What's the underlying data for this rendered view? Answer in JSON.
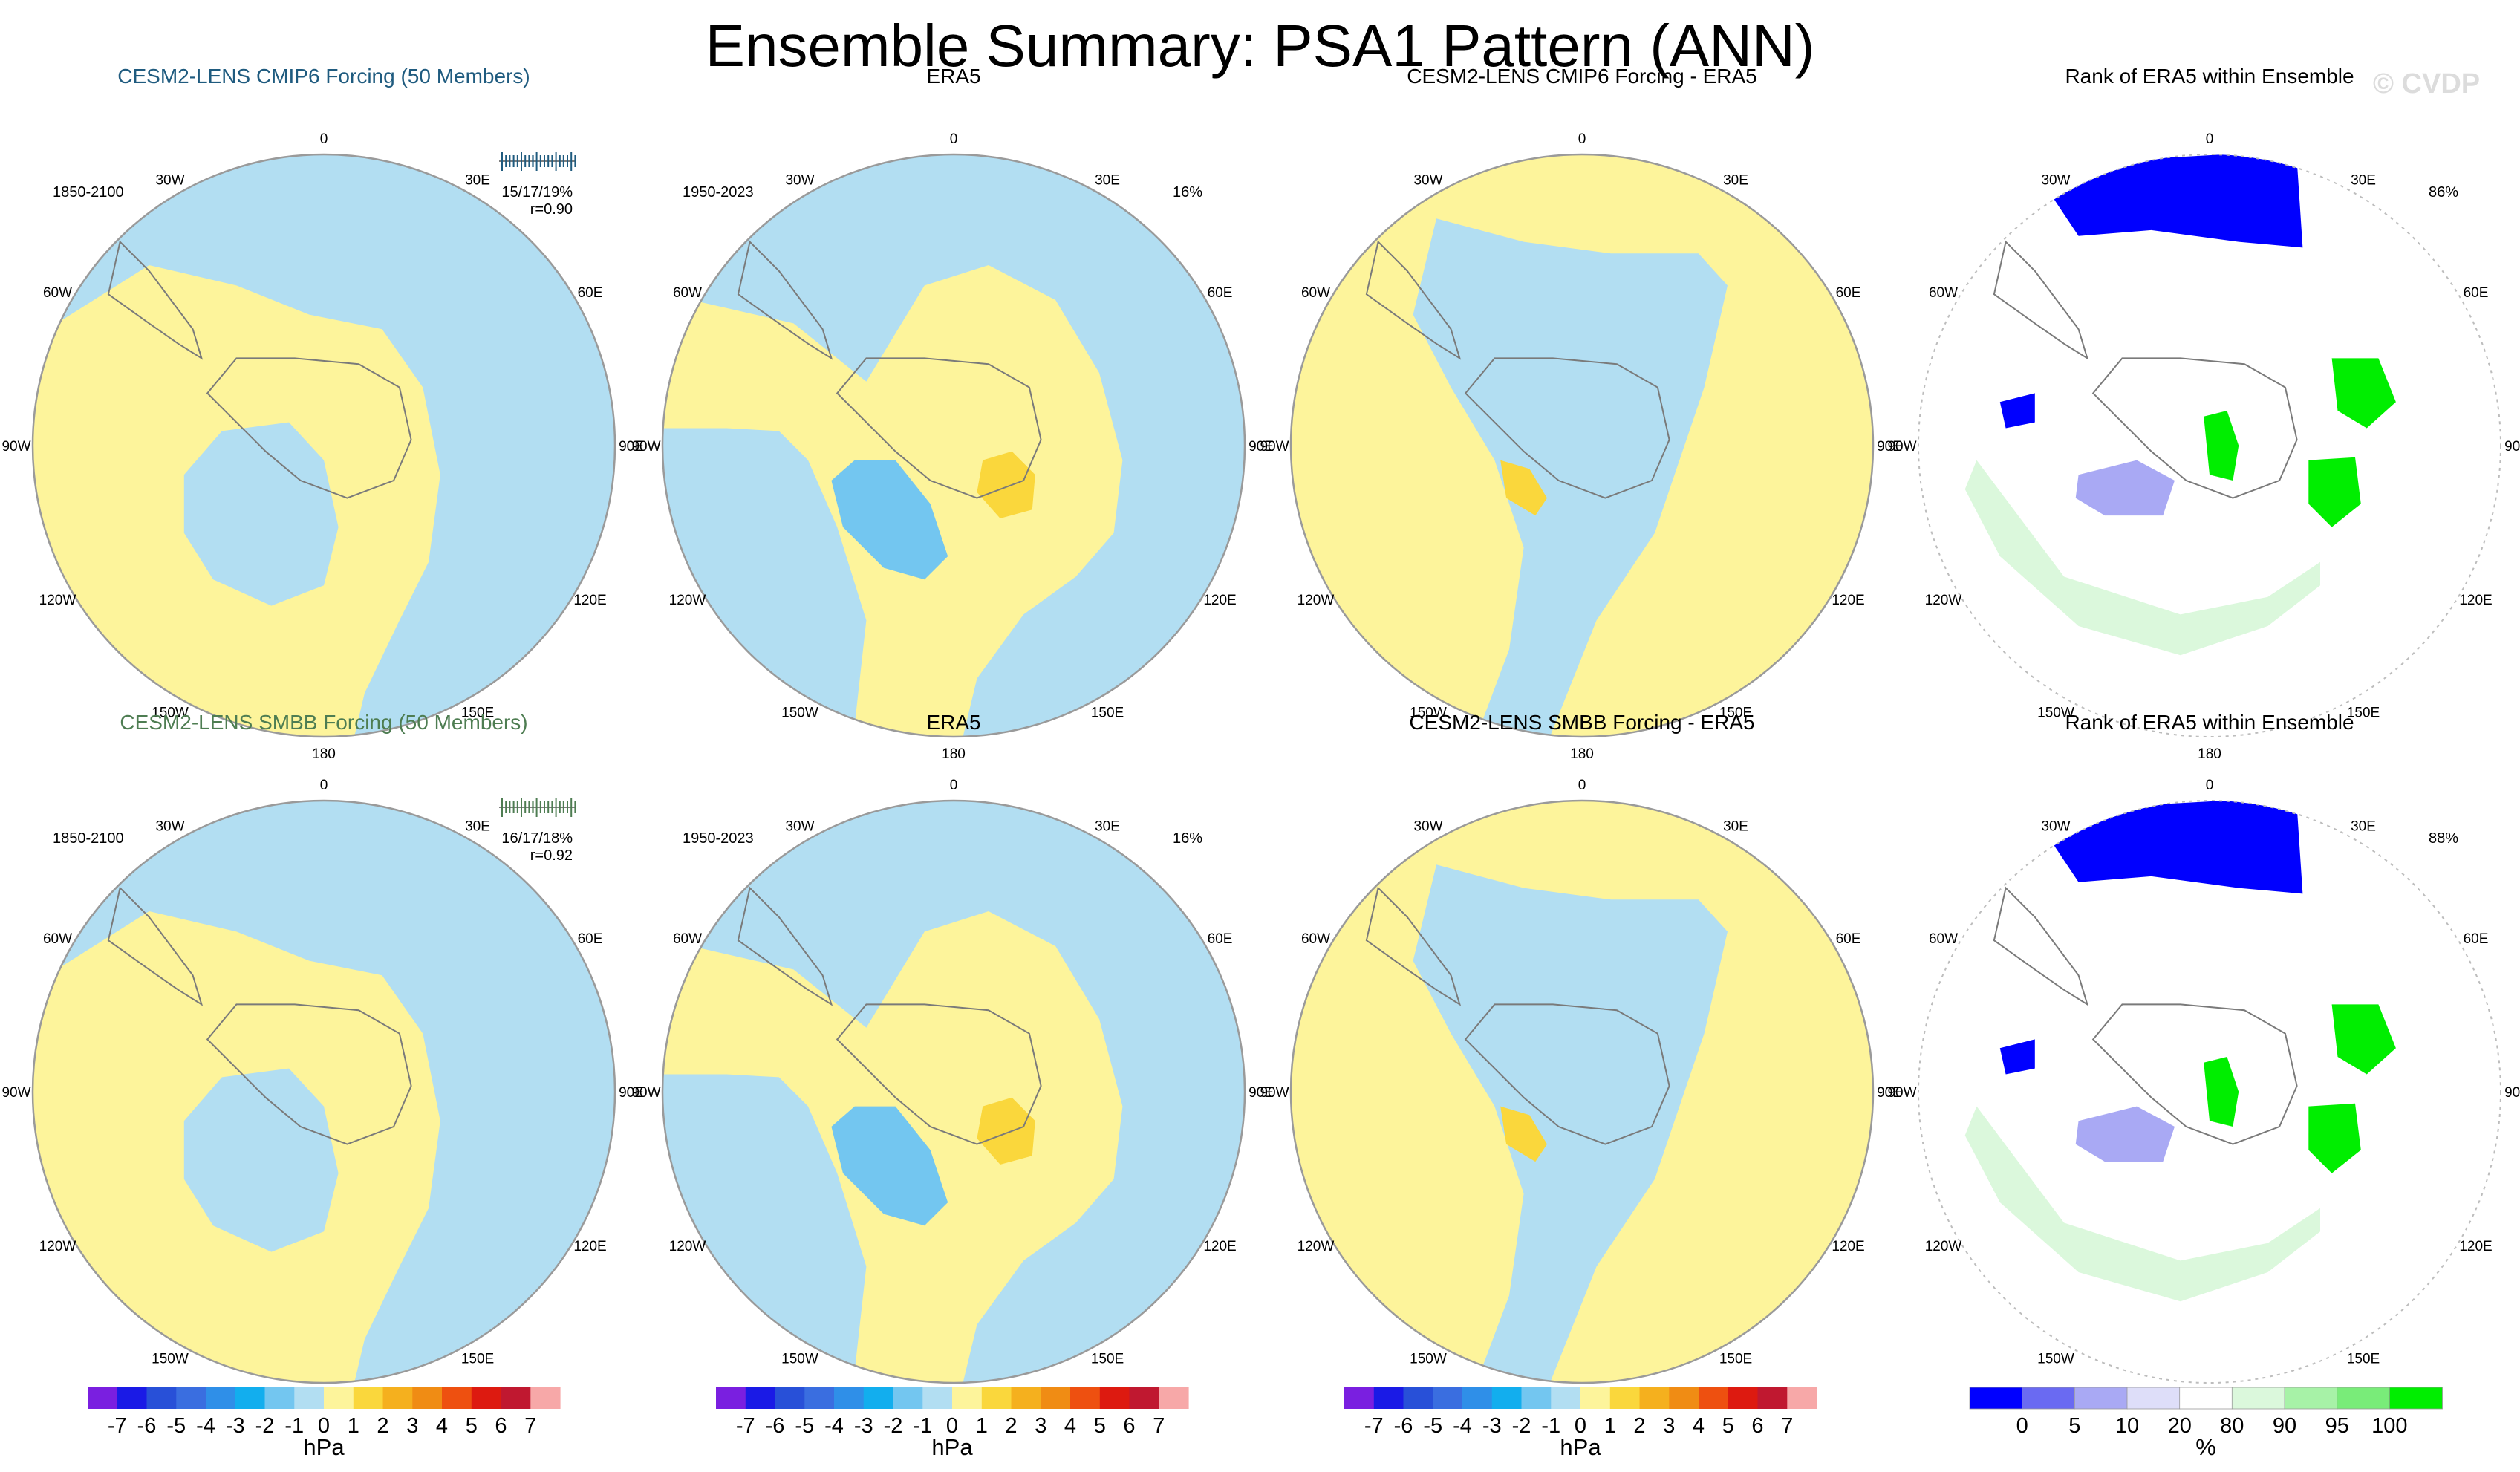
{
  "title": "Ensemble Summary: PSA1 Pattern (ANN)",
  "watermark": "© CVDP",
  "colors": {
    "neg_light": "#b2def2",
    "neg_mid": "#73c6f0",
    "pos_light": "#fdf49b",
    "pos_mid": "#fad73c",
    "coast": "#7a7a7a",
    "title_cmip6": "#1f5b7f",
    "title_smbb": "#4e7d52",
    "rank_blue": "#0000ff",
    "rank_green": "#00ee00"
  },
  "lon_labels": [
    "0",
    "30E",
    "60E",
    "90E",
    "120E",
    "150E",
    "180",
    "150W",
    "120W",
    "90W",
    "60W",
    "30W"
  ],
  "rows": [
    {
      "panels": [
        {
          "title": "CESM2-LENS CMIP6 Forcing (50 Members)",
          "title_color_key": "title_cmip6",
          "left": "1850-2100",
          "right_lines": [
            "15/17/19%",
            "r=0.90"
          ],
          "ticks": true
        },
        {
          "title": "ERA5",
          "left": "1950-2023",
          "right_lines": [
            "16%"
          ]
        },
        {
          "title": "CESM2-LENS CMIP6 Forcing - ERA5",
          "left": "",
          "right_lines": []
        },
        {
          "title": "Rank of ERA5 within Ensemble",
          "left": "",
          "right_lines": [
            "86%"
          ]
        }
      ]
    },
    {
      "panels": [
        {
          "title": "CESM2-LENS SMBB Forcing (50 Members)",
          "title_color_key": "title_smbb",
          "left": "1850-2100",
          "right_lines": [
            "16/17/18%",
            "r=0.92"
          ],
          "ticks": true
        },
        {
          "title": "ERA5",
          "left": "1950-2023",
          "right_lines": [
            "16%"
          ]
        },
        {
          "title": "CESM2-LENS SMBB Forcing - ERA5",
          "left": "",
          "right_lines": []
        },
        {
          "title": "Rank of ERA5 within Ensemble",
          "left": "",
          "right_lines": [
            "88%"
          ]
        }
      ]
    }
  ],
  "chart_data": [
    {
      "type": "heatmap",
      "name": "hPa colorbar",
      "units_label": "hPa",
      "levels": [
        -7,
        -6,
        -5,
        -4,
        -3,
        -2,
        -1,
        0,
        1,
        2,
        3,
        4,
        5,
        6,
        7
      ],
      "tick_labels": [
        "-7",
        "-6",
        "-5",
        "-4",
        "-3",
        "-2",
        "-1",
        "0",
        "1",
        "2",
        "3",
        "4",
        "5",
        "6",
        "7"
      ],
      "colors": [
        "#7a1fe0",
        "#1a1ae6",
        "#2850d8",
        "#3a6ee0",
        "#2f8fe8",
        "#12aeee",
        "#73c6f0",
        "#b2def2",
        "#fdf49b",
        "#fad73c",
        "#f5b01e",
        "#f08c14",
        "#ee5010",
        "#dd1a10",
        "#c01830",
        "#f7a8a8"
      ]
    },
    {
      "type": "heatmap",
      "name": "rank colorbar",
      "units_label": "%",
      "levels": [
        0,
        5,
        10,
        20,
        80,
        90,
        95,
        100
      ],
      "tick_labels": [
        "0",
        "5",
        "10",
        "20",
        "80",
        "90",
        "95",
        "100"
      ],
      "colors": [
        "#0000ff",
        "#6a6af2",
        "#a9a9f4",
        "#dedef9",
        "#ffffff",
        "#dbf8dc",
        "#a7f2a7",
        "#79ec79",
        "#00ee00"
      ]
    }
  ]
}
